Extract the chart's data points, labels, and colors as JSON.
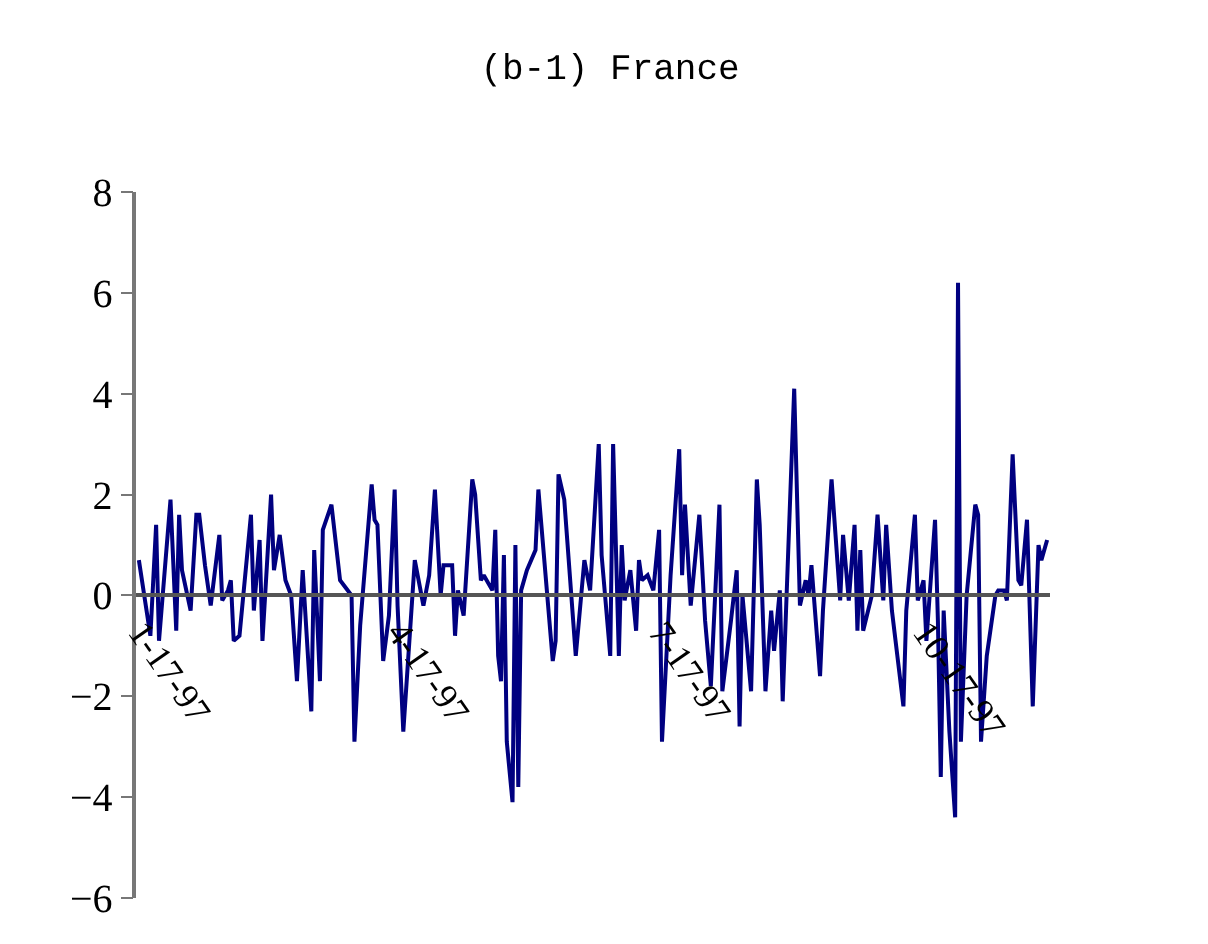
{
  "chart_data": {
    "type": "line",
    "title": "(b-1) France",
    "x": [
      "1997-01-16",
      "1997-01-20",
      "1997-01-22",
      "1997-01-23",
      "1997-01-27",
      "1997-01-29",
      "1997-01-30",
      "1997-01-31",
      "1997-02-03",
      "1997-02-05",
      "1997-02-06",
      "1997-02-08",
      "1997-02-10",
      "1997-02-13",
      "1997-02-14",
      "1997-02-16",
      "1997-02-17",
      "1997-02-18",
      "1997-02-20",
      "1997-02-24",
      "1997-02-25",
      "1997-02-27",
      "1997-02-28",
      "1997-03-03",
      "1997-03-04",
      "1997-03-06",
      "1997-03-08",
      "1997-03-10",
      "1997-03-12",
      "1997-03-14",
      "1997-03-17",
      "1997-03-18",
      "1997-03-20",
      "1997-03-21",
      "1997-03-24",
      "1997-03-27",
      "1997-03-31",
      "1997-04-01",
      "1997-04-03",
      "1997-04-07",
      "1997-04-08",
      "1997-04-09",
      "1997-04-11",
      "1997-04-13",
      "1997-04-15",
      "1997-04-16",
      "1997-04-18",
      "1997-04-22",
      "1997-04-25",
      "1997-04-27",
      "1997-04-29",
      "1997-05-01",
      "1997-05-02",
      "1997-05-05",
      "1997-05-06",
      "1997-05-07",
      "1997-05-09",
      "1997-05-12",
      "1997-05-13",
      "1997-05-15",
      "1997-05-16",
      "1997-05-19",
      "1997-05-20",
      "1997-05-21",
      "1997-05-22",
      "1997-05-23",
      "1997-05-24",
      "1997-05-26",
      "1997-05-27",
      "1997-05-28",
      "1997-05-29",
      "1997-05-31",
      "1997-06-03",
      "1997-06-04",
      "1997-06-09",
      "1997-06-10",
      "1997-06-11",
      "1997-06-13",
      "1997-06-17",
      "1997-06-20",
      "1997-06-22",
      "1997-06-25",
      "1997-06-26",
      "1997-06-29",
      "1997-06-30",
      "1997-07-02",
      "1997-07-03",
      "1997-07-04",
      "1997-07-06",
      "1997-07-08",
      "1997-07-09",
      "1997-07-10",
      "1997-07-12",
      "1997-07-14",
      "1997-07-16",
      "1997-07-17",
      "1997-07-20",
      "1997-07-23",
      "1997-07-24",
      "1997-07-25",
      "1997-07-27",
      "1997-07-30",
      "1997-08-01",
      "1997-08-03",
      "1997-08-06",
      "1997-08-07",
      "1997-08-10",
      "1997-08-12",
      "1997-08-13",
      "1997-08-14",
      "1997-08-17",
      "1997-08-19",
      "1997-08-20",
      "1997-08-22",
      "1997-08-24",
      "1997-08-25",
      "1997-08-27",
      "1997-08-28",
      "1997-09-01",
      "1997-09-03",
      "1997-09-05",
      "1997-09-06",
      "1997-09-07",
      "1997-09-10",
      "1997-09-11",
      "1997-09-14",
      "1997-09-15",
      "1997-09-17",
      "1997-09-18",
      "1997-09-20",
      "1997-09-22",
      "1997-09-23",
      "1997-09-24",
      "1997-09-25",
      "1997-09-28",
      "1997-09-30",
      "1997-10-02",
      "1997-10-03",
      "1997-10-05",
      "1997-10-09",
      "1997-10-10",
      "1997-10-13",
      "1997-10-14",
      "1997-10-16",
      "1997-10-17",
      "1997-10-20",
      "1997-10-21",
      "1997-10-22",
      "1997-10-23",
      "1997-10-25",
      "1997-10-27",
      "1997-10-28",
      "1997-10-29",
      "1997-10-31",
      "1997-11-03",
      "1997-11-04",
      "1997-11-05",
      "1997-11-07",
      "1997-11-10",
      "1997-11-11",
      "1997-11-13",
      "1997-11-14",
      "1997-11-16",
      "1997-11-18",
      "1997-11-19",
      "1997-11-21",
      "1997-11-23",
      "1997-11-25",
      "1997-11-26",
      "1997-11-28"
    ],
    "series": [
      {
        "color": "#000080",
        "values": [
          0.7,
          -0.8,
          1.4,
          -0.9,
          1.9,
          -0.7,
          1.6,
          0.5,
          -0.3,
          1.6,
          1.6,
          0.6,
          -0.2,
          1.2,
          -0.1,
          0.1,
          0.3,
          -0.9,
          -0.8,
          1.6,
          -0.3,
          1.1,
          -0.9,
          2.0,
          0.5,
          1.2,
          0.3,
          0.0,
          -1.7,
          0.5,
          -2.3,
          0.9,
          -1.7,
          1.3,
          1.8,
          0.3,
          0.0,
          -2.9,
          -0.6,
          2.2,
          1.5,
          1.4,
          -1.3,
          -0.4,
          2.1,
          -0.2,
          -2.7,
          0.7,
          -0.2,
          0.4,
          2.1,
          0.0,
          0.6,
          0.6,
          -0.8,
          0.1,
          -0.4,
          2.3,
          2.0,
          0.3,
          0.4,
          0.1,
          1.3,
          -1.2,
          -1.7,
          0.8,
          -2.9,
          -4.1,
          1.0,
          -3.8,
          0.1,
          0.5,
          0.9,
          2.1,
          -1.3,
          -0.9,
          2.4,
          1.9,
          -1.2,
          0.7,
          0.1,
          3.0,
          0.8,
          -1.2,
          3.0,
          -1.2,
          1.0,
          -0.1,
          0.5,
          -0.7,
          0.7,
          0.3,
          0.4,
          0.1,
          1.3,
          -2.9,
          0.4,
          2.9,
          0.4,
          1.8,
          -0.2,
          1.6,
          -0.5,
          -1.8,
          1.8,
          -1.9,
          -0.5,
          0.5,
          -2.6,
          0.0,
          -1.9,
          2.3,
          1.4,
          -1.9,
          -0.3,
          -1.1,
          0.1,
          -2.1,
          4.1,
          -0.2,
          0.3,
          0.0,
          0.6,
          -1.6,
          -0.3,
          2.3,
          1.5,
          -0.1,
          1.2,
          -0.1,
          1.4,
          -0.7,
          0.9,
          -0.7,
          0.0,
          1.6,
          -0.1,
          1.4,
          -0.3,
          -2.2,
          -0.3,
          1.6,
          -0.1,
          0.3,
          -0.9,
          1.5,
          -0.5,
          -3.6,
          -0.3,
          -2.7,
          -4.4,
          6.2,
          -2.9,
          0.0,
          1.8,
          1.6,
          -2.9,
          -1.2,
          0.0,
          0.1,
          0.1,
          -0.1,
          2.8,
          0.3,
          0.2,
          1.5,
          -2.2,
          1.0,
          0.7,
          1.1
        ]
      }
    ],
    "xlim": [
      "1997-01-15",
      "1997-11-29"
    ],
    "xticks": [
      {
        "value": "1997-01-17",
        "label": "1-17-97"
      },
      {
        "value": "1997-04-17",
        "label": "4-17-97"
      },
      {
        "value": "1997-07-17",
        "label": "7-17-97"
      },
      {
        "value": "1997-10-17",
        "label": "10-17-97"
      }
    ],
    "ylim": [
      -6,
      8
    ],
    "yticks": [
      -6,
      -4,
      -2,
      0,
      2,
      4,
      6,
      8
    ]
  }
}
